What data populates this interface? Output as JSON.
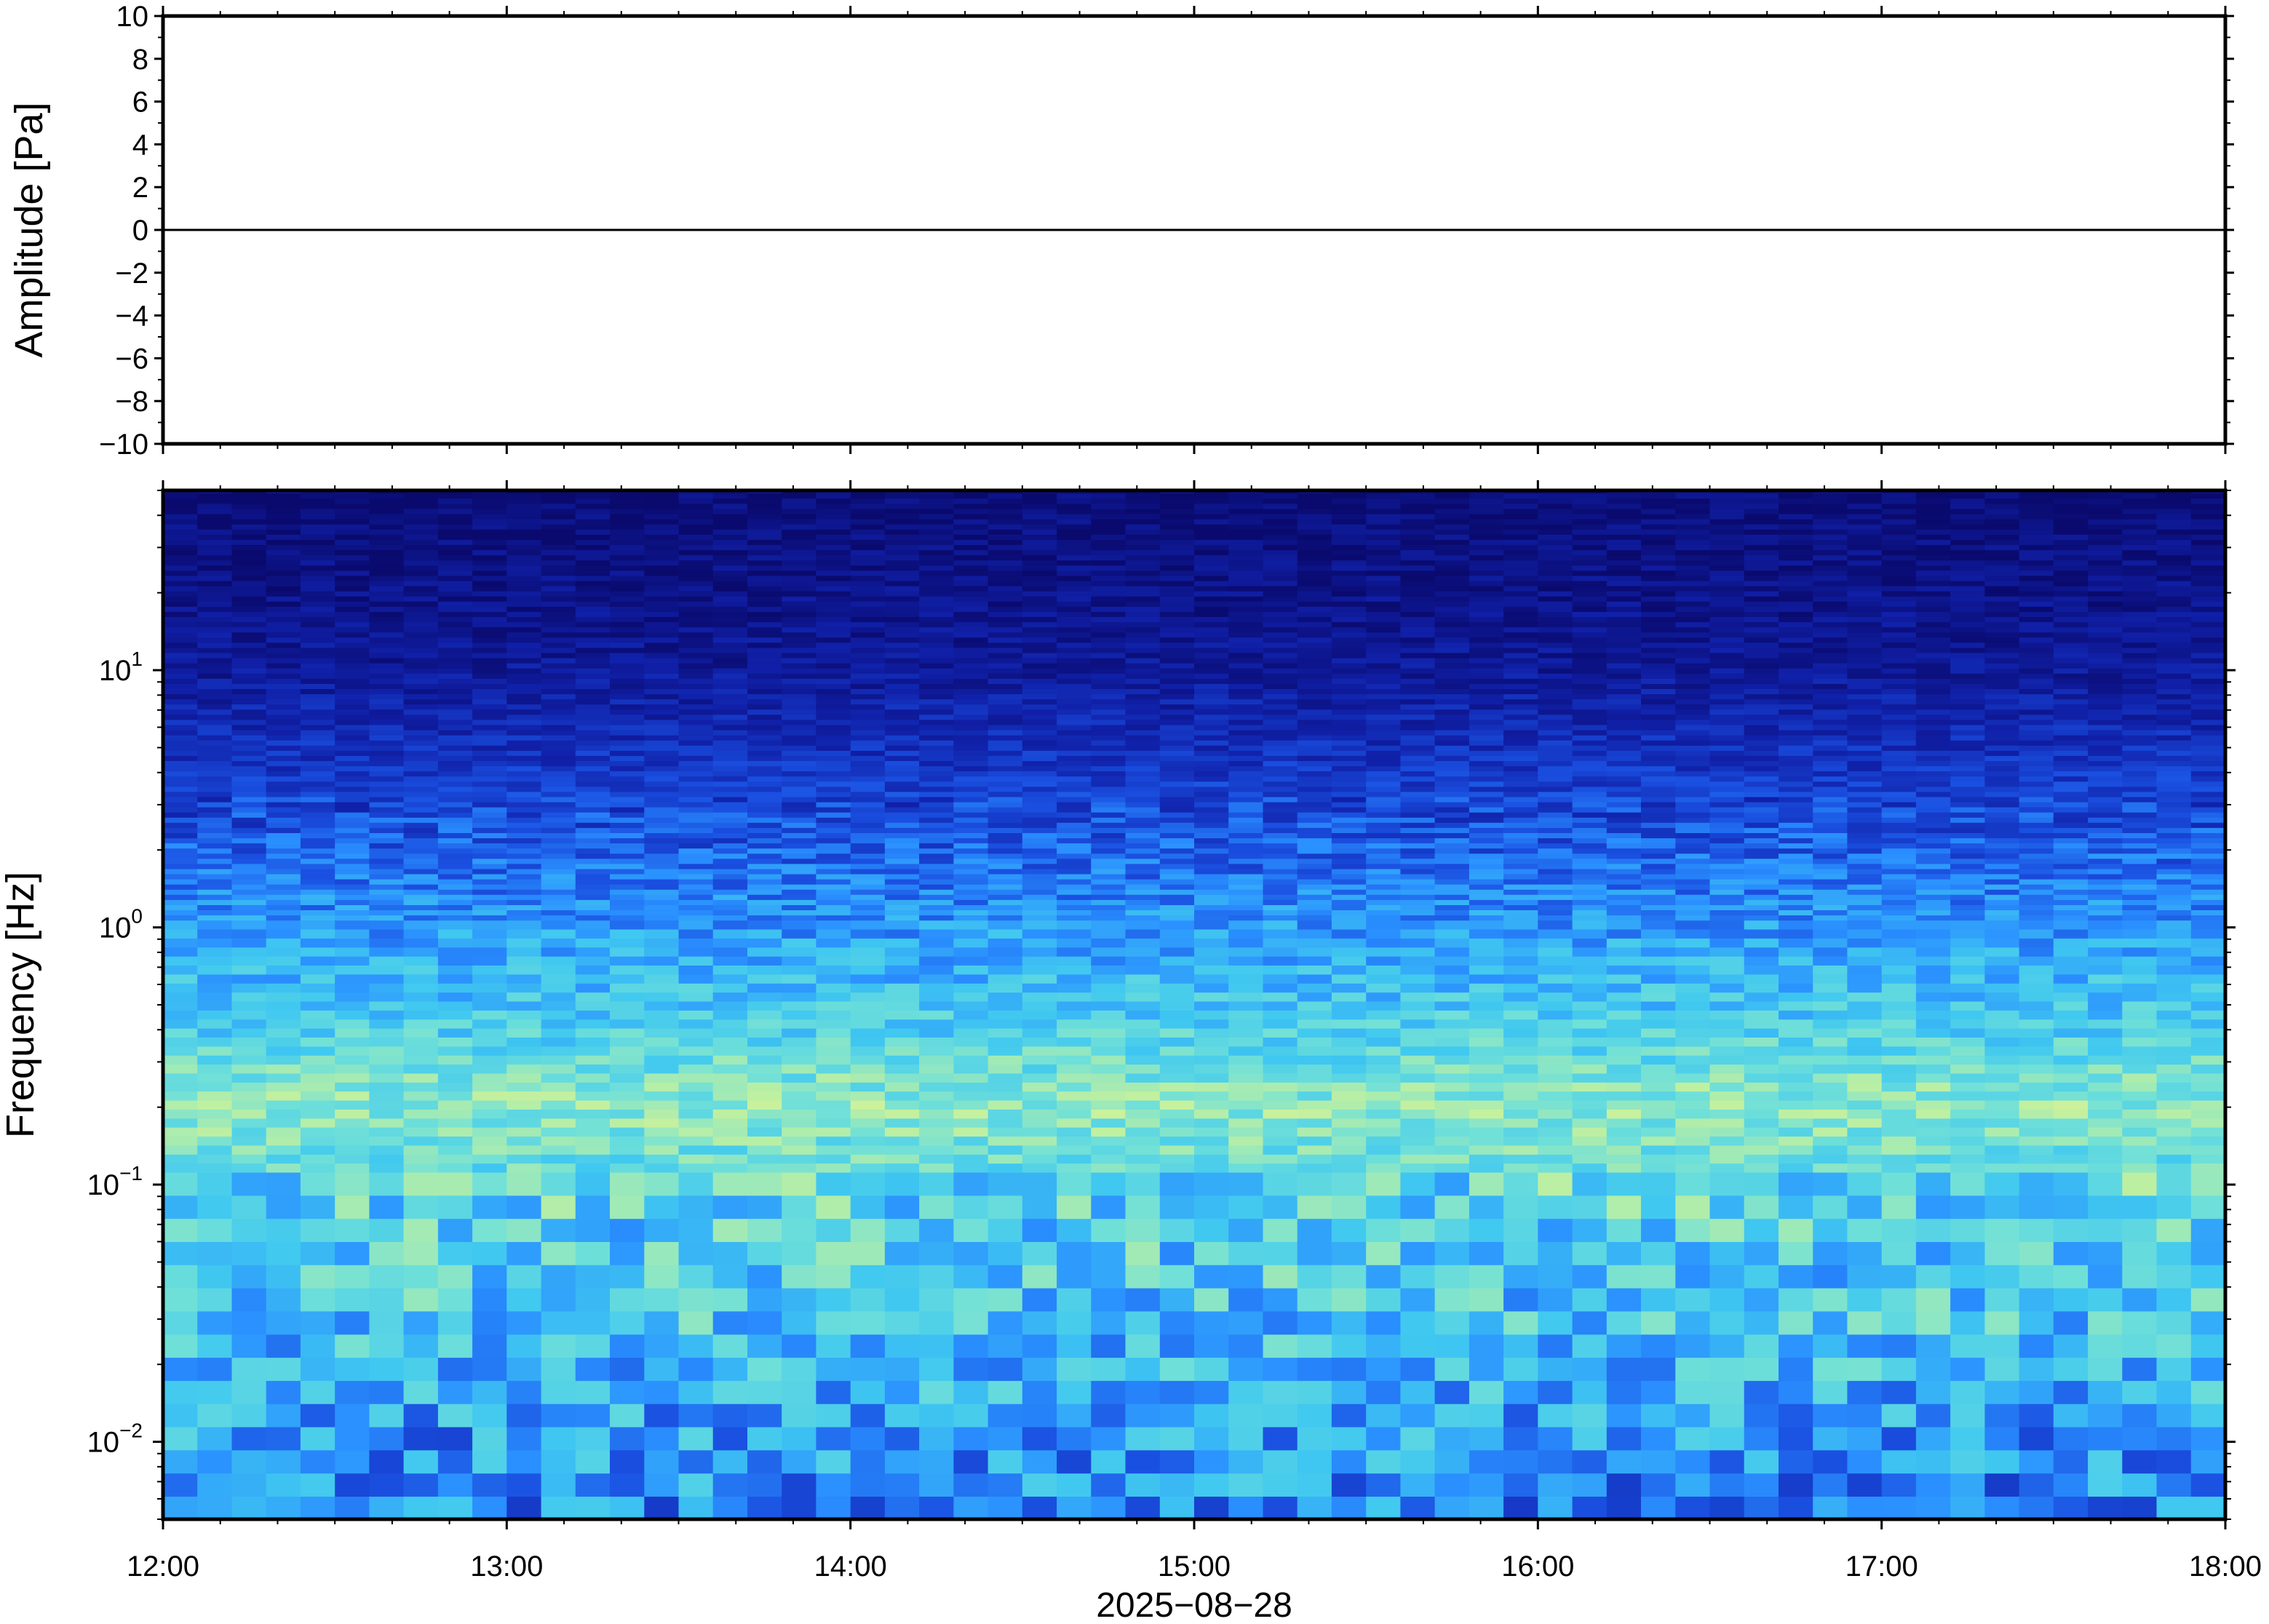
{
  "chart_data": [
    {
      "type": "line",
      "ylabel": "Amplitude [Pa]",
      "ylim": [
        -10,
        10
      ],
      "y_ticks": [
        10,
        8,
        6,
        4,
        2,
        0,
        -2,
        -4,
        -6,
        -8,
        -10
      ],
      "y_tick_labels": [
        "10",
        "8",
        "6",
        "4",
        "2",
        "0",
        "−2",
        "−4",
        "−6",
        "−8",
        "−10"
      ],
      "series": [
        {
          "x": [
            "12:00",
            "13:00",
            "14:00",
            "15:00",
            "16:00",
            "17:00",
            "18:00"
          ],
          "values": [
            0,
            0,
            0,
            0,
            0,
            0,
            0
          ]
        }
      ],
      "line_color": "#000000",
      "grid": false
    },
    {
      "type": "heatmap",
      "ylabel": "Frequency [Hz]",
      "yscale": "log",
      "ylim": [
        0.005,
        50
      ],
      "y_ticks": [
        0.01,
        0.1,
        1,
        10
      ],
      "y_tick_labels": [
        {
          "base": "10",
          "exp": "−2"
        },
        {
          "base": "10",
          "exp": "−1"
        },
        {
          "base": "10",
          "exp": "0"
        },
        {
          "base": "10",
          "exp": "1"
        }
      ],
      "x_tick_labels": [
        "12:00",
        "13:00",
        "14:00",
        "15:00",
        "16:00",
        "17:00",
        "18:00"
      ],
      "xlabel": "2025−08−28",
      "colormap": [
        "#0a0a6e",
        "#1020a8",
        "#1a4fe0",
        "#2a90ff",
        "#40c8f0",
        "#70e0d8",
        "#c0f0a0",
        "#f0f590"
      ],
      "frequency_profile": [
        {
          "freq_hz": 0.006,
          "level": 0.42
        },
        {
          "freq_hz": 0.01,
          "level": 0.45
        },
        {
          "freq_hz": 0.02,
          "level": 0.55
        },
        {
          "freq_hz": 0.05,
          "level": 0.6
        },
        {
          "freq_hz": 0.1,
          "level": 0.65
        },
        {
          "freq_hz": 0.2,
          "level": 0.78
        },
        {
          "freq_hz": 0.4,
          "level": 0.62
        },
        {
          "freq_hz": 1,
          "level": 0.45
        },
        {
          "freq_hz": 3,
          "level": 0.26
        },
        {
          "freq_hz": 10,
          "level": 0.1
        },
        {
          "freq_hz": 50,
          "level": 0.02
        }
      ]
    }
  ]
}
